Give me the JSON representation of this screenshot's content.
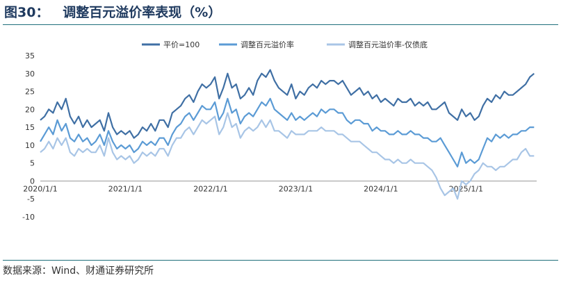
{
  "figure": {
    "title": "图30：   调整百元溢价率表现（%）",
    "source": "数据来源：Wind、财通证券研究所"
  },
  "colors": {
    "series1": "#3f6fa4",
    "series2": "#5b9bd5",
    "series3": "#a8c5e6",
    "axis": "#999999",
    "rule": "#1f6f7a"
  },
  "chart_data": {
    "type": "line",
    "grid": false,
    "legend_position": "top",
    "ylim": [
      -10,
      35
    ],
    "y_ticks": [
      "35",
      "30",
      "25",
      "20",
      "15",
      "10",
      "5",
      "0",
      "-5",
      "-10"
    ],
    "x_ticks": [
      "2020/1/1",
      "2021/1/1",
      "2022/1/1",
      "2023/1/1",
      "2024/1/1",
      "2025/1/1"
    ],
    "x_tick_years": [
      2020.0,
      2021.0,
      2022.0,
      2023.0,
      2024.0,
      2025.0
    ],
    "x_range": [
      2020.0,
      2025.83
    ],
    "series": [
      {
        "name": "平价=100",
        "x": [
          2020.0,
          2020.05,
          2020.1,
          2020.15,
          2020.2,
          2020.25,
          2020.3,
          2020.35,
          2020.4,
          2020.45,
          2020.5,
          2020.55,
          2020.6,
          2020.65,
          2020.7,
          2020.75,
          2020.8,
          2020.85,
          2020.9,
          2020.95,
          2021.0,
          2021.05,
          2021.1,
          2021.15,
          2021.2,
          2021.25,
          2021.3,
          2021.35,
          2021.4,
          2021.45,
          2021.5,
          2021.55,
          2021.6,
          2021.65,
          2021.7,
          2021.75,
          2021.8,
          2021.85,
          2021.9,
          2021.95,
          2022.0,
          2022.05,
          2022.1,
          2022.15,
          2022.2,
          2022.25,
          2022.3,
          2022.35,
          2022.4,
          2022.45,
          2022.5,
          2022.55,
          2022.6,
          2022.65,
          2022.7,
          2022.75,
          2022.8,
          2022.85,
          2022.9,
          2022.95,
          2023.0,
          2023.05,
          2023.1,
          2023.15,
          2023.2,
          2023.25,
          2023.3,
          2023.35,
          2023.4,
          2023.45,
          2023.5,
          2023.55,
          2023.6,
          2023.65,
          2023.7,
          2023.75,
          2023.8,
          2023.85,
          2023.9,
          2023.95,
          2024.0,
          2024.05,
          2024.1,
          2024.15,
          2024.2,
          2024.25,
          2024.3,
          2024.35,
          2024.4,
          2024.45,
          2024.5,
          2024.55,
          2024.6,
          2024.65,
          2024.7,
          2024.75,
          2024.8,
          2024.85,
          2024.9,
          2024.95,
          2025.0,
          2025.05,
          2025.1,
          2025.15,
          2025.2,
          2025.25,
          2025.3,
          2025.35,
          2025.4,
          2025.45,
          2025.5,
          2025.55,
          2025.6,
          2025.65,
          2025.7,
          2025.75,
          2025.8
        ],
        "values": [
          17,
          18,
          20,
          19,
          22,
          20,
          23,
          18,
          16,
          18,
          15,
          17,
          15,
          16,
          17,
          14,
          19,
          15,
          13,
          14,
          13,
          14,
          12,
          13,
          15,
          14,
          16,
          14,
          17,
          17,
          15,
          19,
          20,
          21,
          23,
          24,
          22,
          25,
          27,
          26,
          27,
          29,
          23,
          26,
          30,
          26,
          27,
          23,
          24,
          26,
          24,
          28,
          30,
          29,
          31,
          28,
          26,
          25,
          24,
          27,
          23,
          25,
          24,
          26,
          27,
          26,
          28,
          27,
          28,
          28,
          27,
          28,
          26,
          24,
          25,
          26,
          24,
          25,
          23,
          24,
          22,
          23,
          22,
          21,
          23,
          22,
          22,
          23,
          21,
          22,
          21,
          22,
          20,
          20,
          21,
          22,
          19,
          18,
          17,
          20,
          18,
          19,
          17,
          18,
          21,
          23,
          22,
          24,
          23,
          25,
          24,
          24,
          25,
          26,
          27,
          29,
          30
        ]
      },
      {
        "name": "调整百元溢价率",
        "x": [
          2020.0,
          2020.05,
          2020.1,
          2020.15,
          2020.2,
          2020.25,
          2020.3,
          2020.35,
          2020.4,
          2020.45,
          2020.5,
          2020.55,
          2020.6,
          2020.65,
          2020.7,
          2020.75,
          2020.8,
          2020.85,
          2020.9,
          2020.95,
          2021.0,
          2021.05,
          2021.1,
          2021.15,
          2021.2,
          2021.25,
          2021.3,
          2021.35,
          2021.4,
          2021.45,
          2021.5,
          2021.55,
          2021.6,
          2021.65,
          2021.7,
          2021.75,
          2021.8,
          2021.85,
          2021.9,
          2021.95,
          2022.0,
          2022.05,
          2022.1,
          2022.15,
          2022.2,
          2022.25,
          2022.3,
          2022.35,
          2022.4,
          2022.45,
          2022.5,
          2022.55,
          2022.6,
          2022.65,
          2022.7,
          2022.75,
          2022.8,
          2022.85,
          2022.9,
          2022.95,
          2023.0,
          2023.05,
          2023.1,
          2023.15,
          2023.2,
          2023.25,
          2023.3,
          2023.35,
          2023.4,
          2023.45,
          2023.5,
          2023.55,
          2023.6,
          2023.65,
          2023.7,
          2023.75,
          2023.8,
          2023.85,
          2023.9,
          2023.95,
          2024.0,
          2024.05,
          2024.1,
          2024.15,
          2024.2,
          2024.25,
          2024.3,
          2024.35,
          2024.4,
          2024.45,
          2024.5,
          2024.55,
          2024.6,
          2024.65,
          2024.7,
          2024.75,
          2024.8,
          2024.85,
          2024.9,
          2024.95,
          2025.0,
          2025.05,
          2025.1,
          2025.15,
          2025.2,
          2025.25,
          2025.3,
          2025.35,
          2025.4,
          2025.45,
          2025.5,
          2025.55,
          2025.6,
          2025.65,
          2025.7,
          2025.75,
          2025.8
        ],
        "values": [
          11,
          13,
          15,
          13,
          17,
          14,
          16,
          12,
          11,
          13,
          11,
          12,
          10,
          11,
          13,
          10,
          14,
          11,
          9,
          10,
          9,
          10,
          8,
          9,
          11,
          10,
          11,
          10,
          12,
          12,
          10,
          13,
          15,
          16,
          18,
          19,
          17,
          19,
          21,
          20,
          20,
          22,
          17,
          19,
          23,
          19,
          20,
          16,
          18,
          19,
          18,
          20,
          22,
          21,
          23,
          20,
          19,
          18,
          17,
          19,
          17,
          18,
          17,
          18,
          19,
          18,
          20,
          19,
          20,
          20,
          19,
          19,
          17,
          16,
          17,
          17,
          16,
          16,
          14,
          15,
          14,
          14,
          13,
          13,
          14,
          13,
          13,
          14,
          13,
          13,
          12,
          12,
          11,
          11,
          12,
          10,
          8,
          6,
          4,
          8,
          5,
          6,
          5,
          6,
          9,
          12,
          11,
          13,
          12,
          13,
          12,
          13,
          13,
          14,
          14,
          15,
          15
        ]
      },
      {
        "name": "调整百元溢价率-仅债底",
        "x": [
          2020.0,
          2020.05,
          2020.1,
          2020.15,
          2020.2,
          2020.25,
          2020.3,
          2020.35,
          2020.4,
          2020.45,
          2020.5,
          2020.55,
          2020.6,
          2020.65,
          2020.7,
          2020.75,
          2020.8,
          2020.85,
          2020.9,
          2020.95,
          2021.0,
          2021.05,
          2021.1,
          2021.15,
          2021.2,
          2021.25,
          2021.3,
          2021.35,
          2021.4,
          2021.45,
          2021.5,
          2021.55,
          2021.6,
          2021.65,
          2021.7,
          2021.75,
          2021.8,
          2021.85,
          2021.9,
          2021.95,
          2022.0,
          2022.05,
          2022.1,
          2022.15,
          2022.2,
          2022.25,
          2022.3,
          2022.35,
          2022.4,
          2022.45,
          2022.5,
          2022.55,
          2022.6,
          2022.65,
          2022.7,
          2022.75,
          2022.8,
          2022.85,
          2022.9,
          2022.95,
          2023.0,
          2023.05,
          2023.1,
          2023.15,
          2023.2,
          2023.25,
          2023.3,
          2023.35,
          2023.4,
          2023.45,
          2023.5,
          2023.55,
          2023.6,
          2023.65,
          2023.7,
          2023.75,
          2023.8,
          2023.85,
          2023.9,
          2023.95,
          2024.0,
          2024.05,
          2024.1,
          2024.15,
          2024.2,
          2024.25,
          2024.3,
          2024.35,
          2024.4,
          2024.45,
          2024.5,
          2024.55,
          2024.6,
          2024.65,
          2024.7,
          2024.75,
          2024.8,
          2024.85,
          2024.9,
          2024.95,
          2025.0,
          2025.05,
          2025.1,
          2025.15,
          2025.2,
          2025.25,
          2025.3,
          2025.35,
          2025.4,
          2025.45,
          2025.5,
          2025.55,
          2025.6,
          2025.65,
          2025.7,
          2025.75,
          2025.8
        ],
        "values": [
          8,
          9,
          11,
          9,
          12,
          10,
          12,
          8,
          7,
          9,
          8,
          9,
          8,
          8,
          10,
          7,
          12,
          8,
          6,
          7,
          6,
          7,
          5,
          6,
          8,
          7,
          8,
          7,
          9,
          9,
          7,
          10,
          12,
          12,
          14,
          15,
          13,
          15,
          17,
          16,
          17,
          18,
          13,
          15,
          19,
          15,
          16,
          12,
          14,
          15,
          14,
          15,
          17,
          15,
          17,
          14,
          14,
          13,
          12,
          14,
          13,
          13,
          13,
          14,
          14,
          14,
          15,
          14,
          14,
          14,
          13,
          13,
          12,
          11,
          11,
          11,
          10,
          9,
          8,
          8,
          7,
          6,
          6,
          5,
          6,
          5,
          5,
          6,
          5,
          5,
          5,
          4,
          3,
          1,
          -2,
          -4,
          -3,
          -2,
          -5,
          0,
          -1,
          0,
          2,
          3,
          5,
          4,
          4,
          3,
          4,
          4,
          5,
          6,
          6,
          8,
          9,
          7,
          7
        ]
      }
    ]
  }
}
